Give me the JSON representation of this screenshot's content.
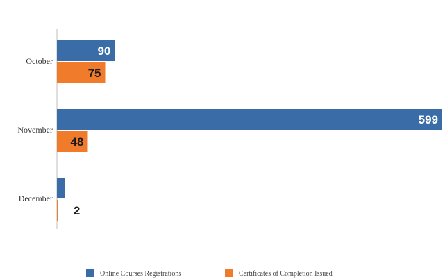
{
  "chart_data": {
    "type": "bar",
    "orientation": "horizontal",
    "categories": [
      "October",
      "November",
      "December"
    ],
    "series": [
      {
        "name": "Online Courses Registrations",
        "values": [
          90,
          599,
          12
        ],
        "color": "#3a6ca8",
        "labels": [
          "90",
          "599",
          ""
        ]
      },
      {
        "name": "Certificates of Completion Issued",
        "values": [
          75,
          48,
          2
        ],
        "color": "#f07c2b",
        "labels": [
          "75",
          "48",
          "2"
        ]
      }
    ],
    "xlim": [
      0,
      599
    ],
    "grid": false,
    "legend_position": "bottom"
  }
}
